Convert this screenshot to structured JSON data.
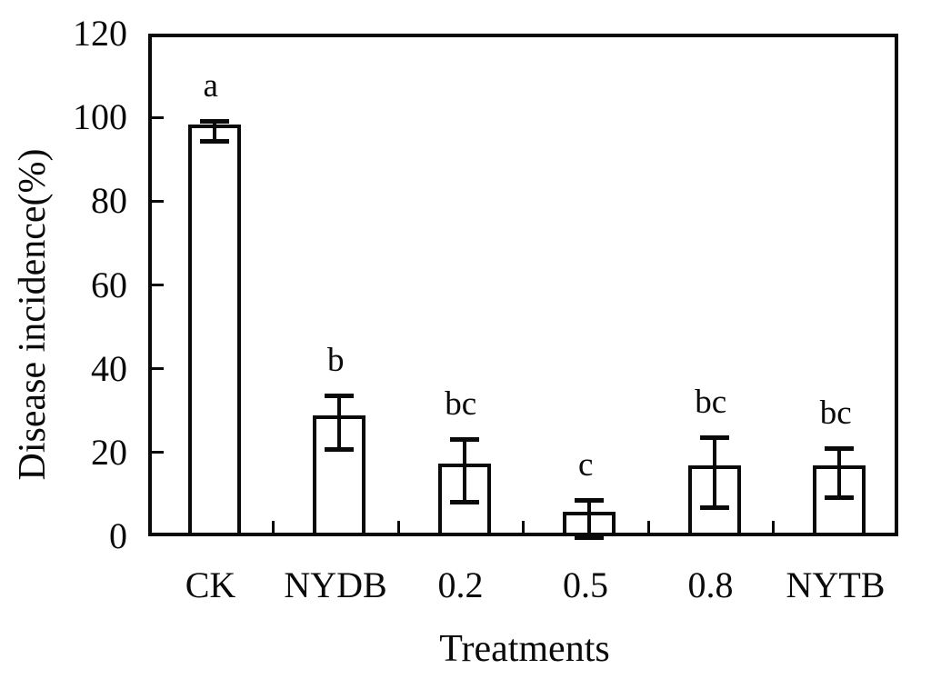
{
  "figure": {
    "background": "#ffffff",
    "line_color": "#0a0a0a"
  },
  "chart_data": {
    "type": "bar",
    "title": "",
    "xlabel": "Treatments",
    "ylabel": "Disease incidence(%)",
    "categories": [
      "CK",
      "NYDB",
      "0.2",
      "0.5",
      "0.8",
      "NYTB"
    ],
    "values": [
      97.5,
      28,
      16.5,
      5,
      16,
      16
    ],
    "error_bars": [
      2.5,
      6.5,
      7.5,
      4.5,
      8.5,
      6
    ],
    "sig_letters": [
      "a",
      "b",
      "bc",
      "c",
      "bc",
      "bc"
    ],
    "ylim": [
      0,
      120
    ],
    "yticks": [
      0,
      20,
      40,
      60,
      80,
      100,
      120
    ],
    "grid": false,
    "legend": false,
    "bar_fill": "#ffffff",
    "bar_border": "#000000"
  }
}
